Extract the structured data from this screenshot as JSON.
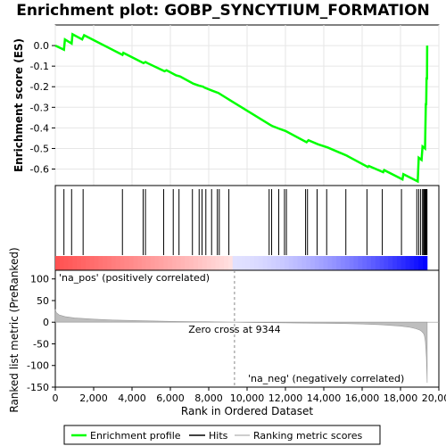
{
  "chart_data": {
    "type": "line",
    "title": "Enrichment plot: GOBP_SYNCYTIUM_FORMATION",
    "panels": {
      "es": {
        "ylabel": "Enrichment score (ES)",
        "ylim": [
          -0.68,
          0.1
        ],
        "yticks": [
          "0.0",
          "-0.1",
          "-0.2",
          "-0.3",
          "-0.4",
          "-0.5",
          "-0.6"
        ],
        "ytick_values": [
          0.0,
          -0.1,
          -0.2,
          -0.3,
          -0.4,
          -0.5,
          -0.6
        ],
        "series": [
          {
            "name": "Enrichment profile",
            "color": "#00ff00",
            "x": [
              0,
              450,
              500,
              850,
              900,
              1400,
              1500,
              3500,
              3550,
              4600,
              4700,
              4800,
              5700,
              5800,
              6300,
              6500,
              7200,
              7500,
              7700,
              7800,
              8200,
              8500,
              9100,
              11200,
              11300,
              11700,
              12000,
              13100,
              13200,
              13700,
              14200,
              15200,
              15300,
              16300,
              16350,
              17100,
              17150,
              18100,
              18150,
              18900,
              18950,
              19100,
              19150,
              19280,
              19300,
              19320,
              19340,
              19360,
              19380,
              19390
            ],
            "y": [
              0.0,
              -0.02,
              0.03,
              0.01,
              0.055,
              0.03,
              0.05,
              -0.045,
              -0.035,
              -0.085,
              -0.08,
              -0.085,
              -0.125,
              -0.12,
              -0.145,
              -0.15,
              -0.185,
              -0.195,
              -0.2,
              -0.205,
              -0.22,
              -0.23,
              -0.265,
              -0.385,
              -0.39,
              -0.405,
              -0.415,
              -0.47,
              -0.46,
              -0.48,
              -0.495,
              -0.535,
              -0.54,
              -0.59,
              -0.585,
              -0.615,
              -0.605,
              -0.65,
              -0.625,
              -0.66,
              -0.545,
              -0.555,
              -0.49,
              -0.5,
              -0.4,
              -0.28,
              -0.29,
              -0.155,
              -0.165,
              0.0
            ]
          }
        ]
      },
      "hits": {
        "x": [
          450,
          850,
          1450,
          3500,
          4580,
          4700,
          5650,
          6150,
          6450,
          7150,
          7500,
          7650,
          7850,
          8150,
          8450,
          8550,
          9050,
          11150,
          11280,
          11650,
          11950,
          12050,
          13050,
          13150,
          13650,
          14150,
          15150,
          16250,
          17050,
          18050,
          18850,
          18950,
          19050,
          19150,
          19200,
          19240,
          19280,
          19310,
          19340,
          19360,
          19380
        ]
      },
      "metric": {
        "ylabel": "Ranked list metric (PreRanked)",
        "ylim": [
          -150,
          120
        ],
        "yticks": [
          "100",
          "50",
          "0",
          "-50",
          "-100",
          "-150"
        ],
        "ytick_values": [
          100,
          50,
          0,
          -50,
          -100,
          -150
        ],
        "series": [
          {
            "name": "Ranking metric scores",
            "color": "#bebebe",
            "x": [
              0,
              50,
              200,
              500,
              1000,
              2000,
              3000,
              4000,
              5000,
              6000,
              7000,
              8000,
              9000,
              9344,
              10000,
              11000,
              12000,
              13000,
              14000,
              15000,
              16000,
              17000,
              18000,
              18500,
              18800,
              19000,
              19100,
              19200,
              19250,
              19300,
              19350,
              19390
            ],
            "y": [
              30,
              22,
              17,
              13,
              10,
              7,
              5,
              4,
              3,
              2,
              1.5,
              1,
              0.5,
              0,
              -0.5,
              -1,
              -1.5,
              -2,
              -2.5,
              -3,
              -4,
              -6,
              -9,
              -12,
              -15,
              -18,
              -21,
              -26,
              -32,
              -45,
              -80,
              -140
            ]
          }
        ],
        "zero_cross_label": "Zero cross at 9344",
        "zero_cross": 9344,
        "pos_label": "'na_pos' (positively correlated)",
        "neg_label": "'na_neg' (negatively correlated)",
        "pos_color": "#ff0000",
        "neg_color": "#0000ff"
      }
    },
    "xlabel": "Rank in Ordered Dataset",
    "xlim": [
      0,
      20000
    ],
    "xticks": [
      "0",
      "2,000",
      "4,000",
      "6,000",
      "8,000",
      "10,000",
      "12,000",
      "14,000",
      "16,000",
      "18,000",
      "20,000"
    ],
    "xtick_values": [
      0,
      2000,
      4000,
      6000,
      8000,
      10000,
      12000,
      14000,
      16000,
      18000,
      20000
    ],
    "legend": {
      "placement": "bottom",
      "items": [
        {
          "label": "Enrichment profile",
          "color": "#00ff00"
        },
        {
          "label": "Hits",
          "color": "#000000"
        },
        {
          "label": "Ranking metric scores",
          "color": "#bebebe"
        }
      ]
    },
    "grid": true
  }
}
